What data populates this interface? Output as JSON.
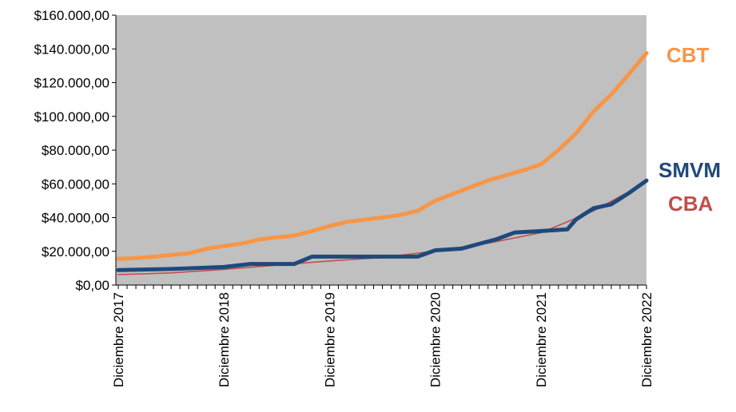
{
  "chart_data": {
    "type": "line",
    "title": "",
    "xlabel": "",
    "ylabel": "",
    "ylim": [
      0,
      160000
    ],
    "y_ticks": [
      "$0,00",
      "$20.000,00",
      "$40.000,00",
      "$60.000,00",
      "$80.000,00",
      "$100.000,00",
      "$120.000,00",
      "$140.000,00",
      "$160.000,00"
    ],
    "y_tick_values": [
      0,
      20000,
      40000,
      60000,
      80000,
      100000,
      120000,
      140000,
      160000
    ],
    "x_tick_labels": [
      "Diciembre 2017",
      "Diciembre 2018",
      "Diciembre 2019",
      "Diciembre 2020",
      "Diciembre 2021",
      "Diciembre 2022"
    ],
    "x_tick_dates": [
      "2017-12",
      "2018-12",
      "2019-12",
      "2020-12",
      "2021-12",
      "2022-12"
    ],
    "grid": false,
    "plot_background": "#c0c0c0",
    "legend": "labels at right end of lines",
    "series": [
      {
        "name": "CBT",
        "color": "#f79646",
        "points": [
          [
            "2017-12",
            15500
          ],
          [
            "2018-02",
            16000
          ],
          [
            "2018-04",
            16800
          ],
          [
            "2018-06",
            17800
          ],
          [
            "2018-08",
            18800
          ],
          [
            "2018-10",
            21500
          ],
          [
            "2018-12",
            23200
          ],
          [
            "2019-02",
            24500
          ],
          [
            "2019-04",
            27000
          ],
          [
            "2019-06",
            28300
          ],
          [
            "2019-08",
            29300
          ],
          [
            "2019-10",
            32000
          ],
          [
            "2019-12",
            35000
          ],
          [
            "2020-02",
            37500
          ],
          [
            "2020-04",
            38800
          ],
          [
            "2020-06",
            40000
          ],
          [
            "2020-08",
            41500
          ],
          [
            "2020-10",
            44000
          ],
          [
            "2020-12",
            50000
          ],
          [
            "2021-02",
            54000
          ],
          [
            "2021-04",
            58000
          ],
          [
            "2021-06",
            62000
          ],
          [
            "2021-08",
            65000
          ],
          [
            "2021-10",
            68000
          ],
          [
            "2021-12",
            71500
          ],
          [
            "2022-02",
            80000
          ],
          [
            "2022-04",
            90000
          ],
          [
            "2022-06",
            103000
          ],
          [
            "2022-08",
            113000
          ],
          [
            "2022-10",
            125000
          ],
          [
            "2022-12",
            137500
          ]
        ]
      },
      {
        "name": "SMVM",
        "color": "#1f497d",
        "points": [
          [
            "2017-12",
            8860
          ],
          [
            "2018-06",
            9500
          ],
          [
            "2018-12",
            10700
          ],
          [
            "2019-03",
            12500
          ],
          [
            "2019-08",
            12500
          ],
          [
            "2019-10",
            16875
          ],
          [
            "2020-10",
            16875
          ],
          [
            "2020-12",
            20587
          ],
          [
            "2021-03",
            21600
          ],
          [
            "2021-05",
            24408
          ],
          [
            "2021-07",
            27216
          ],
          [
            "2021-09",
            31104
          ],
          [
            "2021-12",
            32000
          ],
          [
            "2022-03",
            33000
          ],
          [
            "2022-04",
            38940
          ],
          [
            "2022-06",
            45540
          ],
          [
            "2022-08",
            47850
          ],
          [
            "2022-10",
            54550
          ],
          [
            "2022-12",
            61953
          ]
        ]
      },
      {
        "name": "CBA",
        "color": "#c0504d",
        "points": [
          [
            "2017-12",
            6200
          ],
          [
            "2018-06",
            7200
          ],
          [
            "2018-12",
            9300
          ],
          [
            "2019-06",
            11800
          ],
          [
            "2019-12",
            14300
          ],
          [
            "2020-06",
            16300
          ],
          [
            "2020-12",
            20200
          ],
          [
            "2021-06",
            24800
          ],
          [
            "2021-12",
            31000
          ],
          [
            "2022-06",
            44000
          ],
          [
            "2022-12",
            61000
          ]
        ]
      }
    ]
  }
}
